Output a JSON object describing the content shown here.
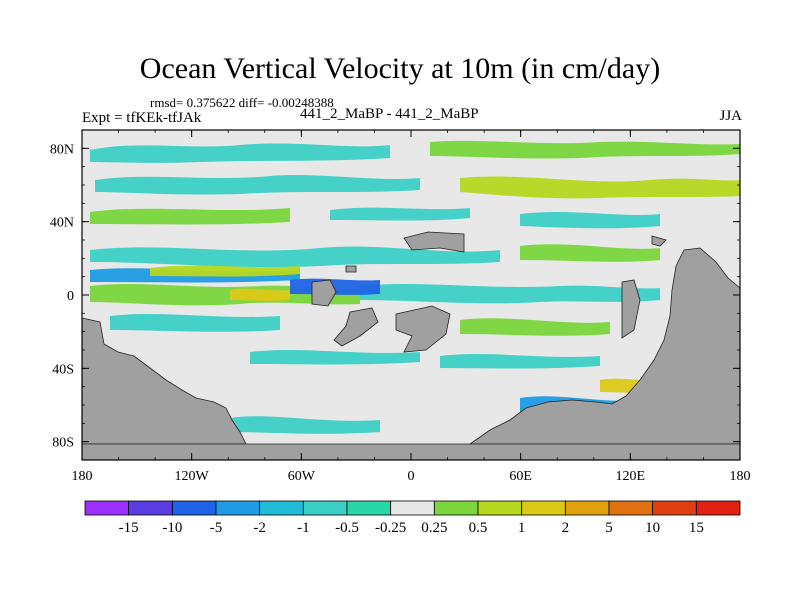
{
  "header": {
    "title": "Ocean Vertical Velocity at 10m (in cm/day)",
    "stats": "rmsd= 0.375622  diff= -0.00248388",
    "experiment": "Expt = tfKEk-tfJAk",
    "cases": "441_2_MaBP - 441_2_MaBP",
    "season": "JJA"
  },
  "chart_data": {
    "type": "heatmap",
    "title": "Ocean Vertical Velocity at 10m (in cm/day)",
    "units": "cm/day",
    "x_ticks": [
      "180",
      "120W",
      "60W",
      "0",
      "60E",
      "120E",
      "180"
    ],
    "y_ticks": [
      "80N",
      "40N",
      "0",
      "40S",
      "80S"
    ],
    "x_range_deg": [
      -180,
      180
    ],
    "y_range_deg": [
      -90,
      90
    ],
    "land_color": "#a0a0a0",
    "colorbar": {
      "labels": [
        "-15",
        "-10",
        "-5",
        "-2",
        "-1",
        "-0.5",
        "-0.25",
        "0.25",
        "0.5",
        "1",
        "2",
        "5",
        "10",
        "15"
      ],
      "colors": [
        "#9b30ff",
        "#5a3ce0",
        "#1f64e6",
        "#1f9be6",
        "#20bcd8",
        "#3ccfc6",
        "#2ad6a8",
        "#e8e8e8",
        "#7ad63c",
        "#b6d820",
        "#dcc818",
        "#e0a010",
        "#e07010",
        "#e04010",
        "#e02010"
      ]
    },
    "dominant_value_class": "-0.25 to 0.25"
  }
}
